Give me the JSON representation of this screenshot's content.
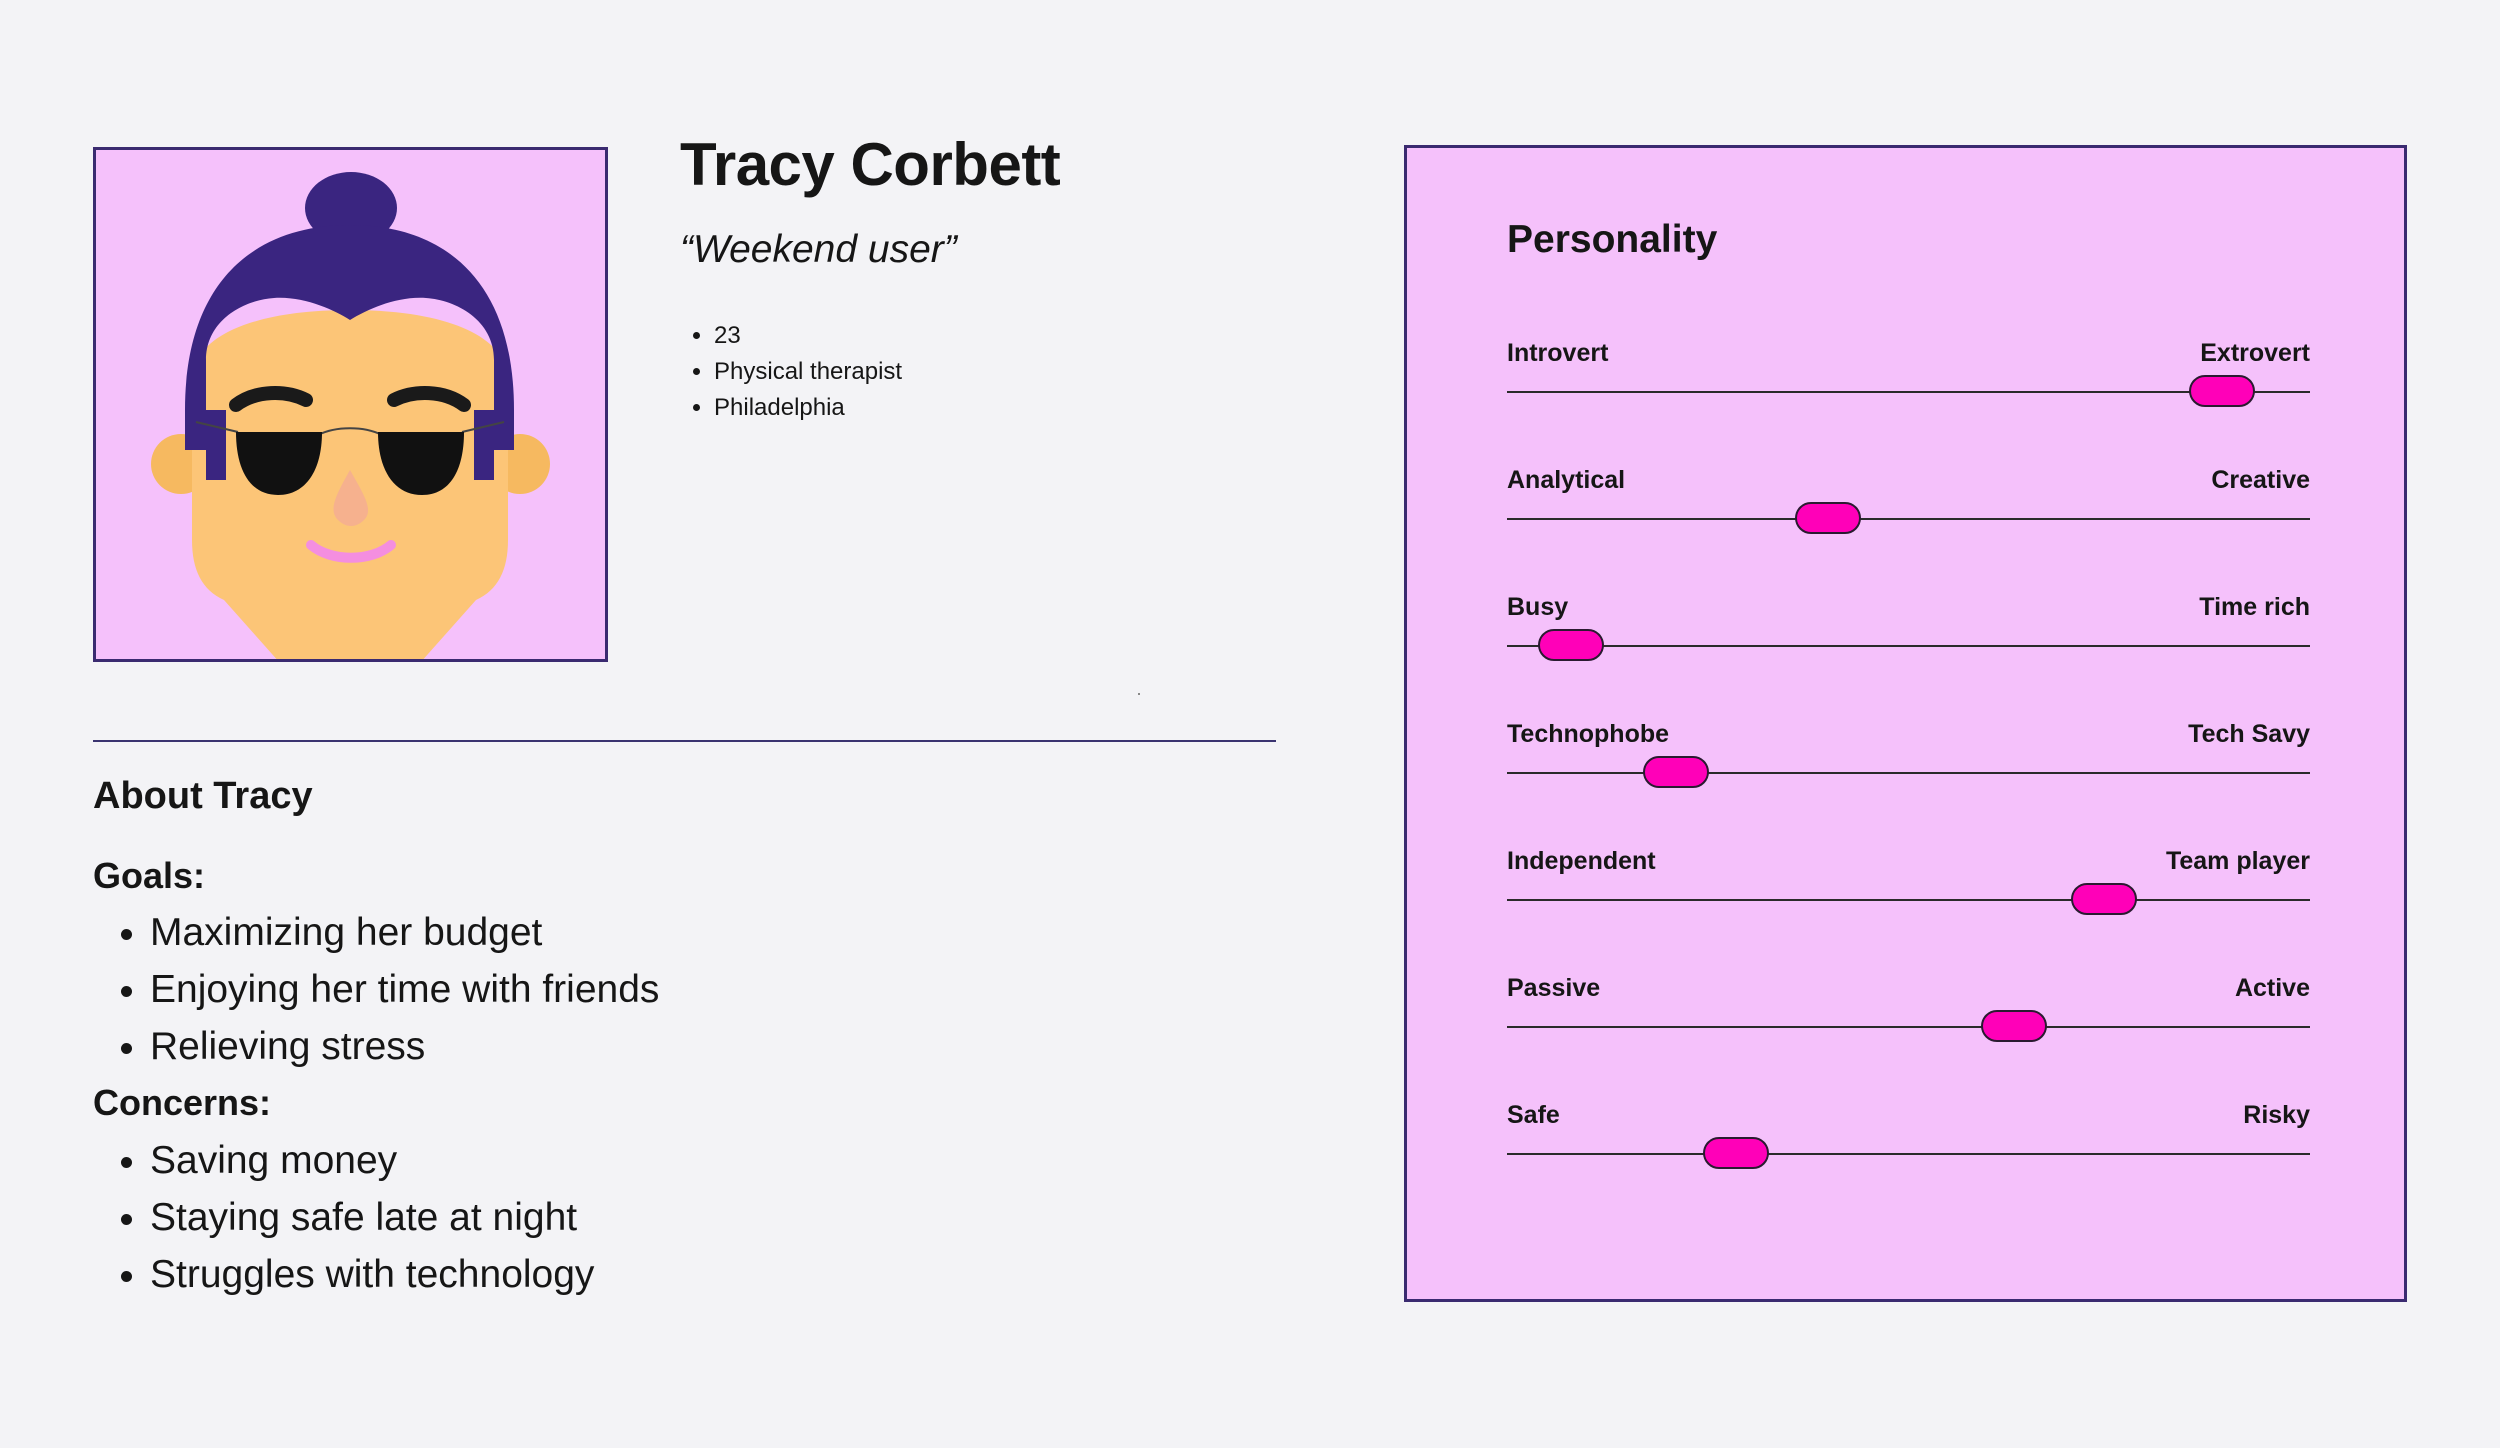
{
  "profile": {
    "name": "Tracy Corbett",
    "quote": "“Weekend user”",
    "facts": [
      "23",
      "Physical therapist",
      "Philadelphia"
    ]
  },
  "about": {
    "title": "About Tracy",
    "goals_heading": "Goals:",
    "goals": [
      "Maximizing her budget",
      "Enjoying her time with friends",
      "Relieving stress"
    ],
    "concerns_heading": "Concerns:",
    "concerns": [
      "Saving money",
      "Staying safe late at night",
      "Struggles with technology"
    ]
  },
  "personality": {
    "title": "Personality",
    "traits": [
      {
        "left": "Introvert",
        "right": "Extrovert",
        "value": 0.89
      },
      {
        "left": "Analytical",
        "right": "Creative",
        "value": 0.4
      },
      {
        "left": "Busy",
        "right": "Time rich",
        "value": 0.08
      },
      {
        "left": "Technophobe",
        "right": "Tech Savy",
        "value": 0.21
      },
      {
        "left": "Independent",
        "right": "Team player",
        "value": 0.744
      },
      {
        "left": "Passive",
        "right": "Active",
        "value": 0.632
      },
      {
        "left": "Safe",
        "right": "Risky",
        "value": 0.285
      }
    ]
  },
  "colors": {
    "page_background": "#f3f3f6",
    "panel_background": "#f5c1fb",
    "border": "#3a2a70",
    "slider_knob": "#ff00b8",
    "hair": "#3a2580",
    "skin": "#fcc577"
  }
}
